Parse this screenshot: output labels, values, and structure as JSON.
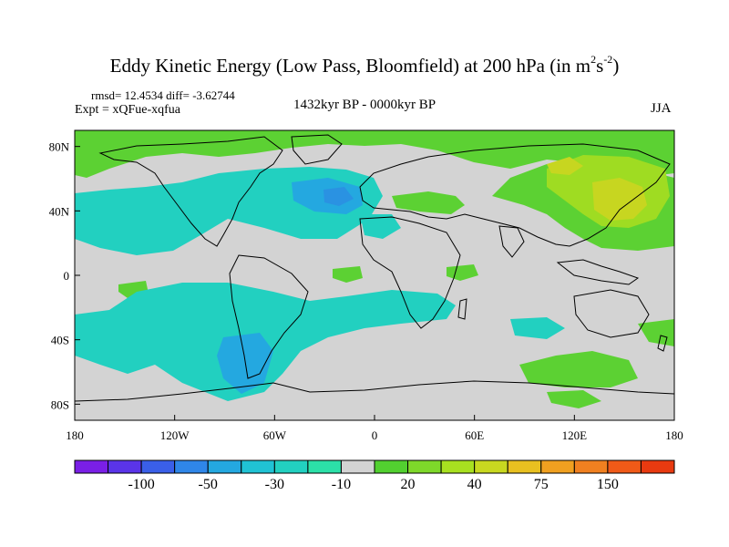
{
  "title": {
    "main": "Eddy Kinetic Energy (Low Pass, Bloomfield) at 200 hPa (in m",
    "sup1": "2",
    "mid": "s",
    "sup2": "-2",
    "close": ")"
  },
  "stats": "rmsd= 12.4534 diff= -3.62744",
  "expt": "Expt = xQFue-xqfua",
  "period": "1432kyr BP - 0000kyr BP",
  "season": "JJA",
  "map": {
    "lon_range": [
      -180,
      180
    ],
    "lat_range": [
      -90,
      90
    ],
    "x_ticks": [
      {
        "value": -180,
        "label": "180"
      },
      {
        "value": -120,
        "label": "120W"
      },
      {
        "value": -60,
        "label": "60W"
      },
      {
        "value": 0,
        "label": "0"
      },
      {
        "value": 60,
        "label": "60E"
      },
      {
        "value": 120,
        "label": "120E"
      },
      {
        "value": 180,
        "label": "180"
      }
    ],
    "y_ticks": [
      {
        "value": 80,
        "label": "80N"
      },
      {
        "value": 40,
        "label": "40N"
      },
      {
        "value": 0,
        "label": "0"
      },
      {
        "value": -40,
        "label": "40S"
      },
      {
        "value": -80,
        "label": "80S"
      }
    ],
    "background_color": "#d3d3d3",
    "coastline_color": "#000000"
  },
  "colorbar": {
    "colors": [
      "#7a1fe6",
      "#5a34e8",
      "#3a5fe8",
      "#2f86e8",
      "#24a8e0",
      "#20c2d4",
      "#22d0c0",
      "#2ce0a8",
      "#d3d3d3",
      "#52d030",
      "#7ed82a",
      "#a8e020",
      "#c8d820",
      "#e8c020",
      "#f0a020",
      "#f08020",
      "#f05a18",
      "#e83a10"
    ],
    "labels": [
      "-100",
      "-50",
      "-30",
      "-10",
      "20",
      "40",
      "75",
      "150"
    ]
  }
}
